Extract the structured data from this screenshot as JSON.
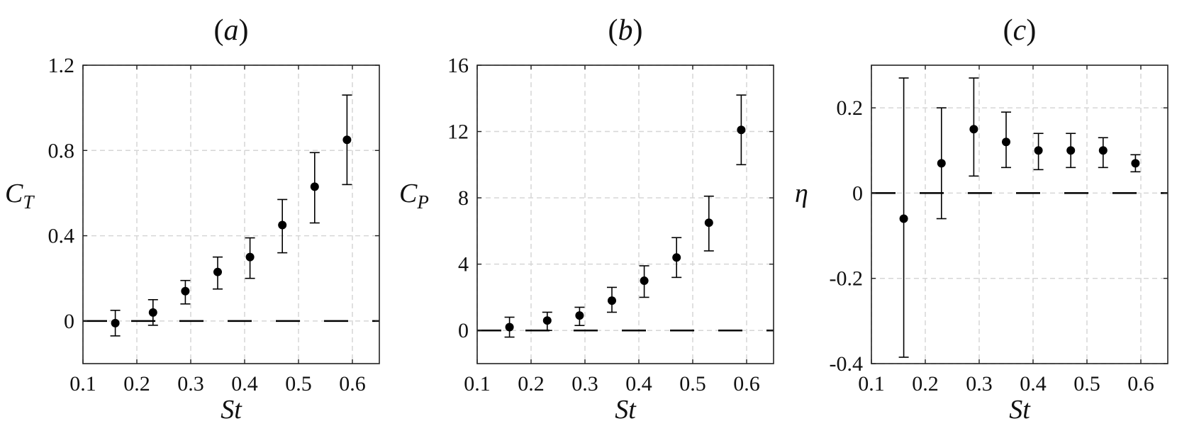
{
  "chart_data": [
    {
      "type": "scatter",
      "title": "(a)",
      "title_letter": "a",
      "xlabel": "St",
      "ylabel": "C",
      "ylabel_sub": "T",
      "xlim": [
        0.1,
        0.65
      ],
      "ylim": [
        -0.2,
        1.2
      ],
      "xticks": [
        "0.1",
        "0.2",
        "0.3",
        "0.4",
        "0.5",
        "0.6"
      ],
      "yticks": [
        "0",
        "0.4",
        "0.8",
        "1.2"
      ],
      "grid": true,
      "reference_line": 0,
      "series": [
        {
          "x": [
            0.16,
            0.23,
            0.29,
            0.35,
            0.41,
            0.47,
            0.53,
            0.59
          ],
          "y": [
            -0.01,
            0.04,
            0.14,
            0.23,
            0.3,
            0.45,
            0.63,
            0.85
          ],
          "err_low": [
            -0.07,
            -0.02,
            0.08,
            0.15,
            0.2,
            0.32,
            0.46,
            0.64
          ],
          "err_high": [
            0.05,
            0.1,
            0.19,
            0.3,
            0.39,
            0.57,
            0.79,
            1.06
          ]
        }
      ]
    },
    {
      "type": "scatter",
      "title": "(b)",
      "title_letter": "b",
      "xlabel": "St",
      "ylabel": "C",
      "ylabel_sub": "P",
      "xlim": [
        0.1,
        0.65
      ],
      "ylim": [
        -2,
        16
      ],
      "xticks": [
        "0.1",
        "0.2",
        "0.3",
        "0.4",
        "0.5",
        "0.6"
      ],
      "yticks": [
        "0",
        "4",
        "8",
        "12",
        "16"
      ],
      "grid": true,
      "reference_line": 0,
      "series": [
        {
          "x": [
            0.16,
            0.23,
            0.29,
            0.35,
            0.41,
            0.47,
            0.53,
            0.59
          ],
          "y": [
            0.2,
            0.6,
            0.9,
            1.8,
            3.0,
            4.4,
            6.5,
            12.1
          ],
          "err_low": [
            -0.4,
            0.0,
            0.3,
            1.1,
            2.0,
            3.2,
            4.8,
            10.0
          ],
          "err_high": [
            0.8,
            1.1,
            1.4,
            2.6,
            3.9,
            5.6,
            8.1,
            14.2
          ]
        }
      ]
    },
    {
      "type": "scatter",
      "title": "(c)",
      "title_letter": "c",
      "xlabel": "St",
      "ylabel": "η",
      "ylabel_sub": "",
      "xlim": [
        0.1,
        0.65
      ],
      "ylim": [
        -0.4,
        0.3
      ],
      "xticks": [
        "0.1",
        "0.2",
        "0.3",
        "0.4",
        "0.5",
        "0.6"
      ],
      "yticks": [
        "-0.4",
        "-0.2",
        "0",
        "0.2"
      ],
      "grid": true,
      "reference_line": 0,
      "series": [
        {
          "x": [
            0.16,
            0.23,
            0.29,
            0.35,
            0.41,
            0.47,
            0.53,
            0.59
          ],
          "y": [
            -0.06,
            0.07,
            0.15,
            0.12,
            0.1,
            0.1,
            0.1,
            0.07
          ],
          "err_low": [
            -0.385,
            -0.06,
            0.04,
            0.06,
            0.055,
            0.06,
            0.06,
            0.05
          ],
          "err_high": [
            0.27,
            0.2,
            0.27,
            0.19,
            0.14,
            0.14,
            0.13,
            0.09
          ]
        }
      ]
    }
  ]
}
